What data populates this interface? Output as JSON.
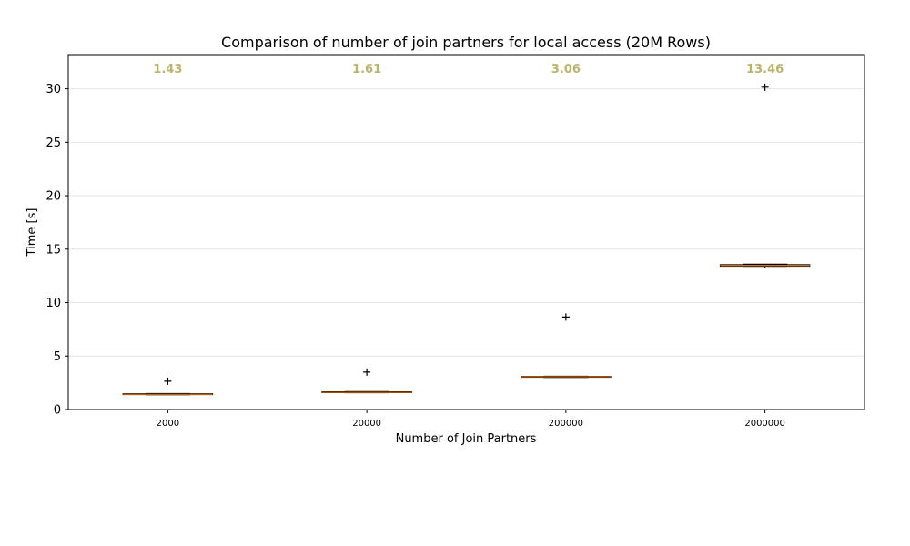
{
  "chart_data": {
    "type": "box",
    "title": "Comparison of number of join partners for local access (20M Rows)",
    "xlabel": "Number of Join Partners",
    "ylabel": "Time [s]",
    "ylim": [
      0,
      33.2
    ],
    "yticks": [
      0,
      5,
      10,
      15,
      20,
      25,
      30
    ],
    "grid": "horizontal",
    "categories": [
      "2000",
      "20000",
      "200000",
      "2000000"
    ],
    "median_labels": [
      "1.43",
      "1.61",
      "3.06",
      "13.46"
    ],
    "boxes": [
      {
        "category": "2000",
        "q1": 1.4,
        "median": 1.43,
        "q3": 1.48,
        "whisker_low": 1.38,
        "whisker_high": 1.5,
        "fliers": [
          2.65
        ]
      },
      {
        "category": "20000",
        "q1": 1.58,
        "median": 1.61,
        "q3": 1.66,
        "whisker_low": 1.56,
        "whisker_high": 1.68,
        "fliers": [
          3.5
        ]
      },
      {
        "category": "200000",
        "q1": 3.02,
        "median": 3.06,
        "q3": 3.1,
        "whisker_low": 3.0,
        "whisker_high": 3.12,
        "fliers": [
          8.65
        ]
      },
      {
        "category": "2000000",
        "q1": 13.4,
        "median": 13.46,
        "q3": 13.55,
        "whisker_low": 13.25,
        "whisker_high": 13.6,
        "fliers": [
          30.15
        ]
      }
    ],
    "colors": {
      "box_edge": "#000000",
      "median": "#ff7f0e",
      "median_label": "#bcb46b",
      "grid": "#e6e6e6"
    }
  }
}
